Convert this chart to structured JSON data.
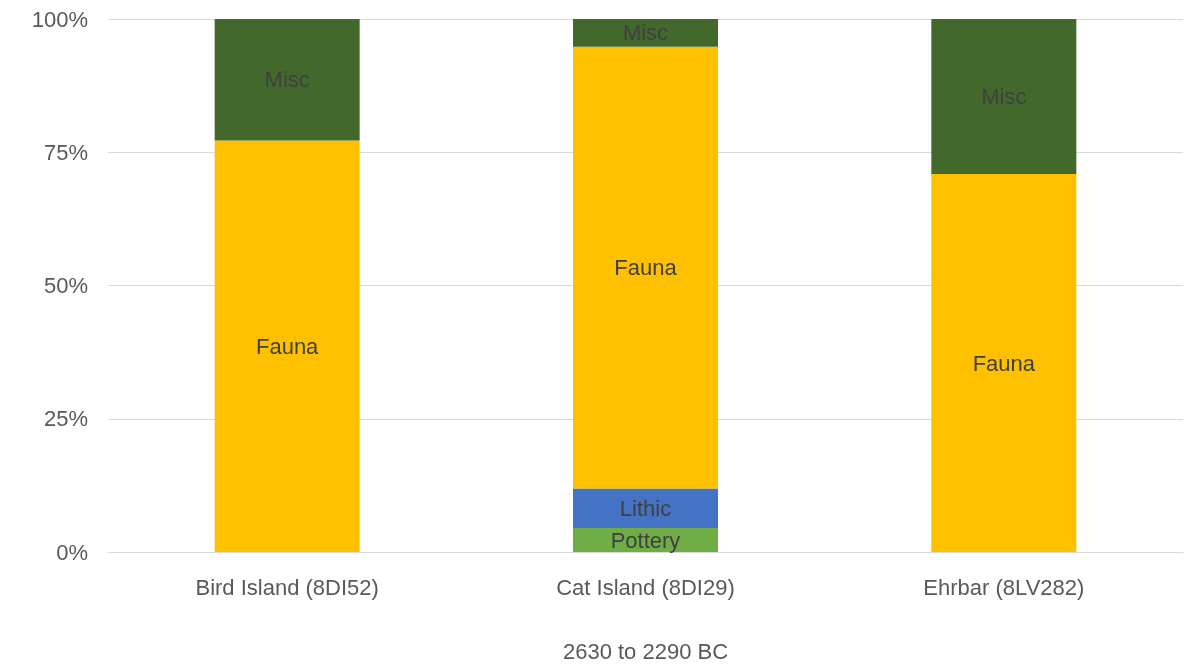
{
  "chart_data": {
    "type": "bar",
    "stacked": true,
    "categories": [
      "Bird Island (8DI52)",
      "Cat Island (8DI29)",
      "Ehrbar (8LV282)"
    ],
    "xlabel": "2630 to 2290 BC",
    "series": [
      {
        "name": "Pottery",
        "color": "#70ad47",
        "values": [
          null,
          4.5,
          null
        ]
      },
      {
        "name": "Lithic",
        "color": "#4472c4",
        "values": [
          null,
          7.4,
          null
        ]
      },
      {
        "name": "Fauna",
        "color": "#ffc000",
        "values": [
          77.2,
          82.9,
          70.9
        ]
      },
      {
        "name": "Misc",
        "color": "#43682b",
        "values": [
          22.8,
          5.2,
          29.1
        ]
      }
    ],
    "ylim": [
      0,
      100
    ],
    "yticks": [
      {
        "value": 0,
        "label": "0%"
      },
      {
        "value": 25,
        "label": "25%"
      },
      {
        "value": 50,
        "label": "50%"
      },
      {
        "value": 75,
        "label": "75%"
      },
      {
        "value": 100,
        "label": "100%"
      }
    ],
    "grid": "y",
    "legend": false
  }
}
